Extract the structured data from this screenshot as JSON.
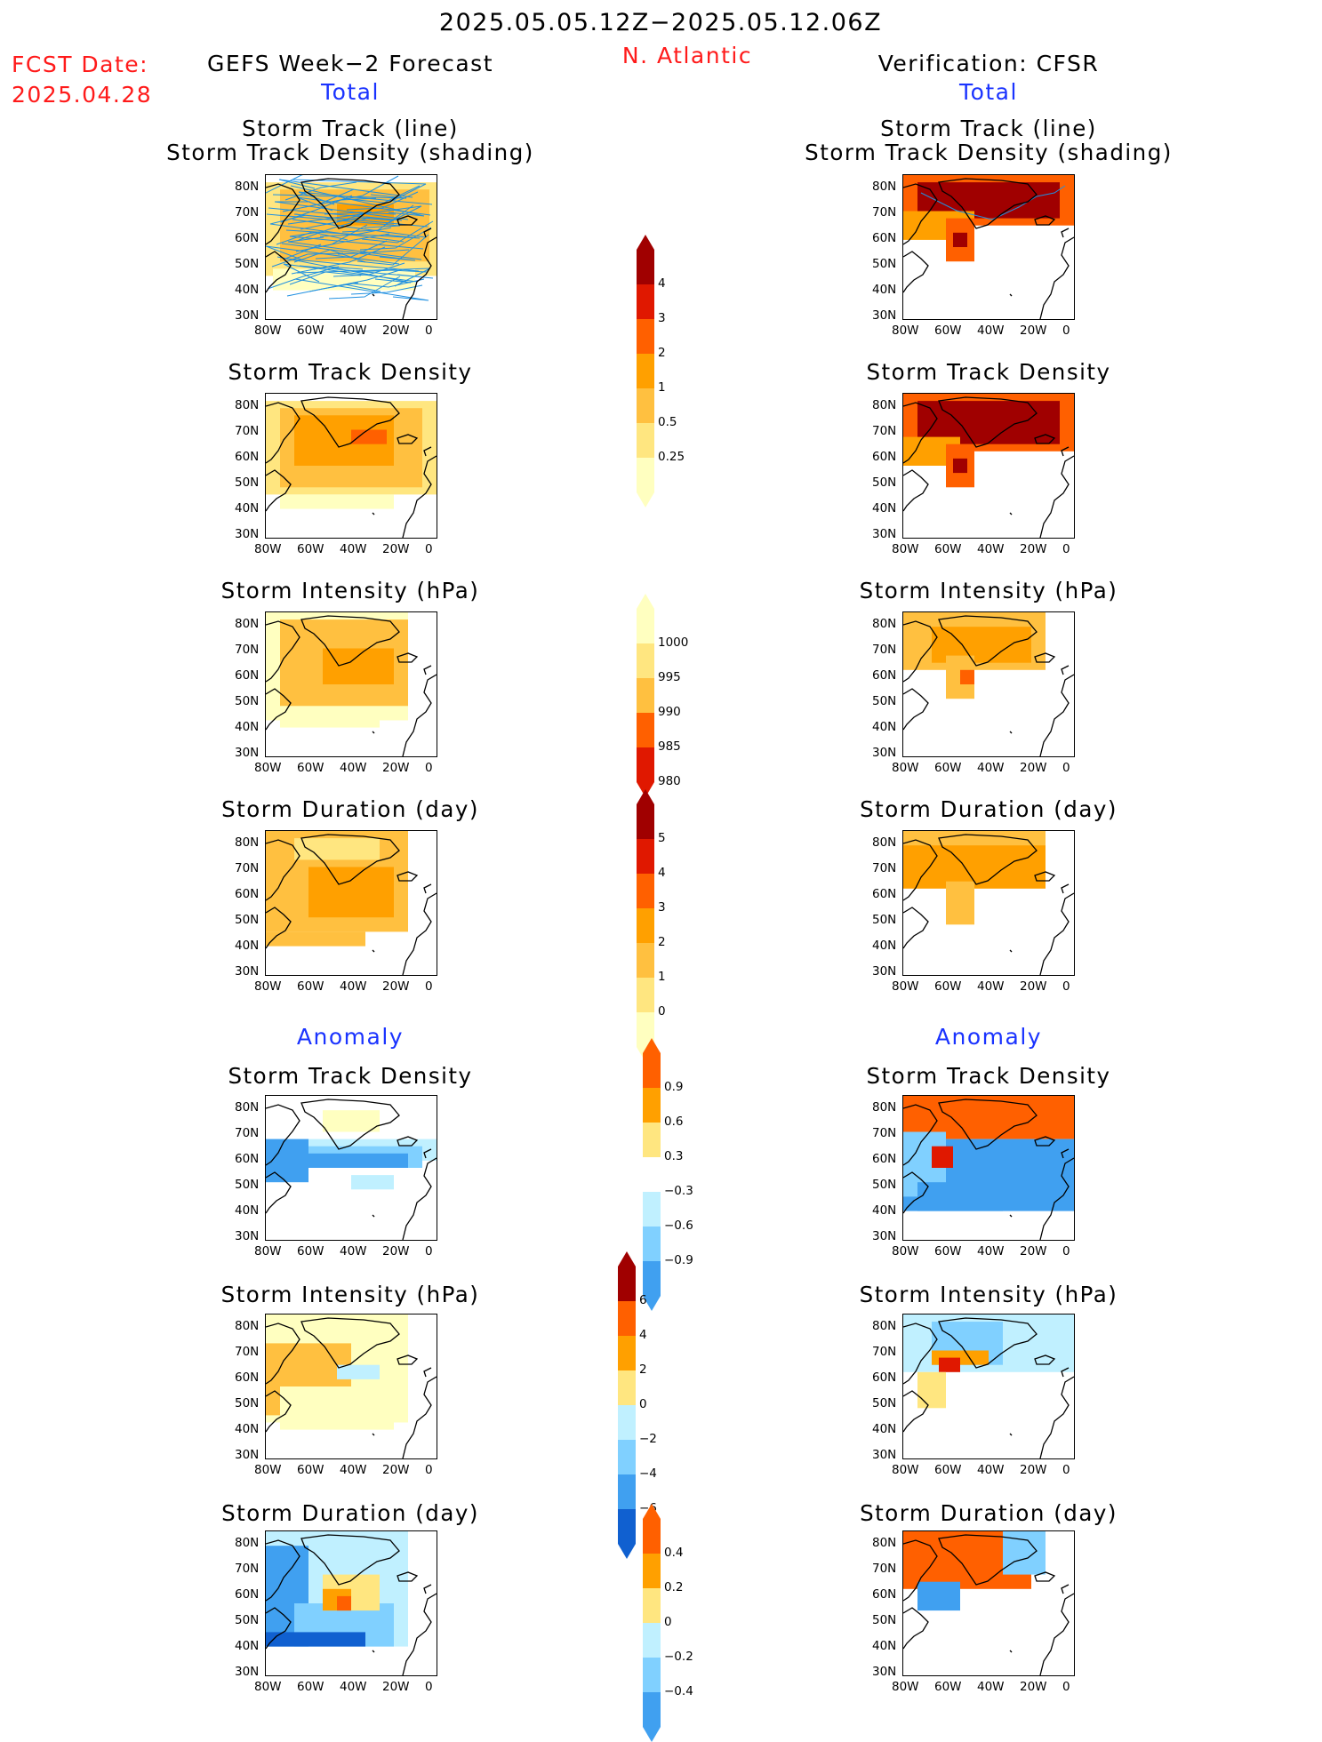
{
  "header": {
    "period": "2025.05.05.12Z−2025.05.12.06Z",
    "region": "N. Atlantic",
    "fcst_label": "FCST Date:",
    "fcst_date": "2025.04.28",
    "left_title": "GEFS Week−2 Forecast",
    "right_title": "Verification: CFSR",
    "total_label": "Total",
    "anomaly_label": "Anomaly"
  },
  "panel_titles": {
    "track_line": "Storm Track (line)",
    "track_shading": "Storm Track Density (shading)",
    "density": "Storm Track Density",
    "intensity": "Storm Intensity (hPa)",
    "duration": "Storm Duration (day)"
  },
  "axes": {
    "lat_ticks": [
      "80N",
      "70N",
      "60N",
      "50N",
      "40N",
      "30N"
    ],
    "lon_ticks": [
      "80W",
      "60W",
      "40W",
      "20W",
      "0"
    ]
  },
  "colors": {
    "warm": [
      "#ffffc0",
      "#ffe680",
      "#ffc040",
      "#ffa000",
      "#ff6000",
      "#e01800",
      "#a00000"
    ],
    "cool": [
      "#c0f0ff",
      "#80d0ff",
      "#40a0f0",
      "#1060d0"
    ],
    "track": "#2090e0"
  },
  "colorbars": {
    "total_density": [
      "4",
      "3",
      "2",
      "1",
      "0.5",
      "0.25"
    ],
    "total_intensity": [
      "1000",
      "995",
      "990",
      "985",
      "980"
    ],
    "total_duration": [
      "5",
      "4",
      "3",
      "2",
      "1",
      "0"
    ],
    "anom_density": [
      "0.9",
      "0.6",
      "0.3",
      "−0.3",
      "−0.6",
      "−0.9"
    ],
    "anom_intensity": [
      "6",
      "4",
      "2",
      "0",
      "−2",
      "−4",
      "−6"
    ],
    "anom_duration": [
      "0.4",
      "0.2",
      "0",
      "−0.2",
      "−0.4"
    ]
  }
}
